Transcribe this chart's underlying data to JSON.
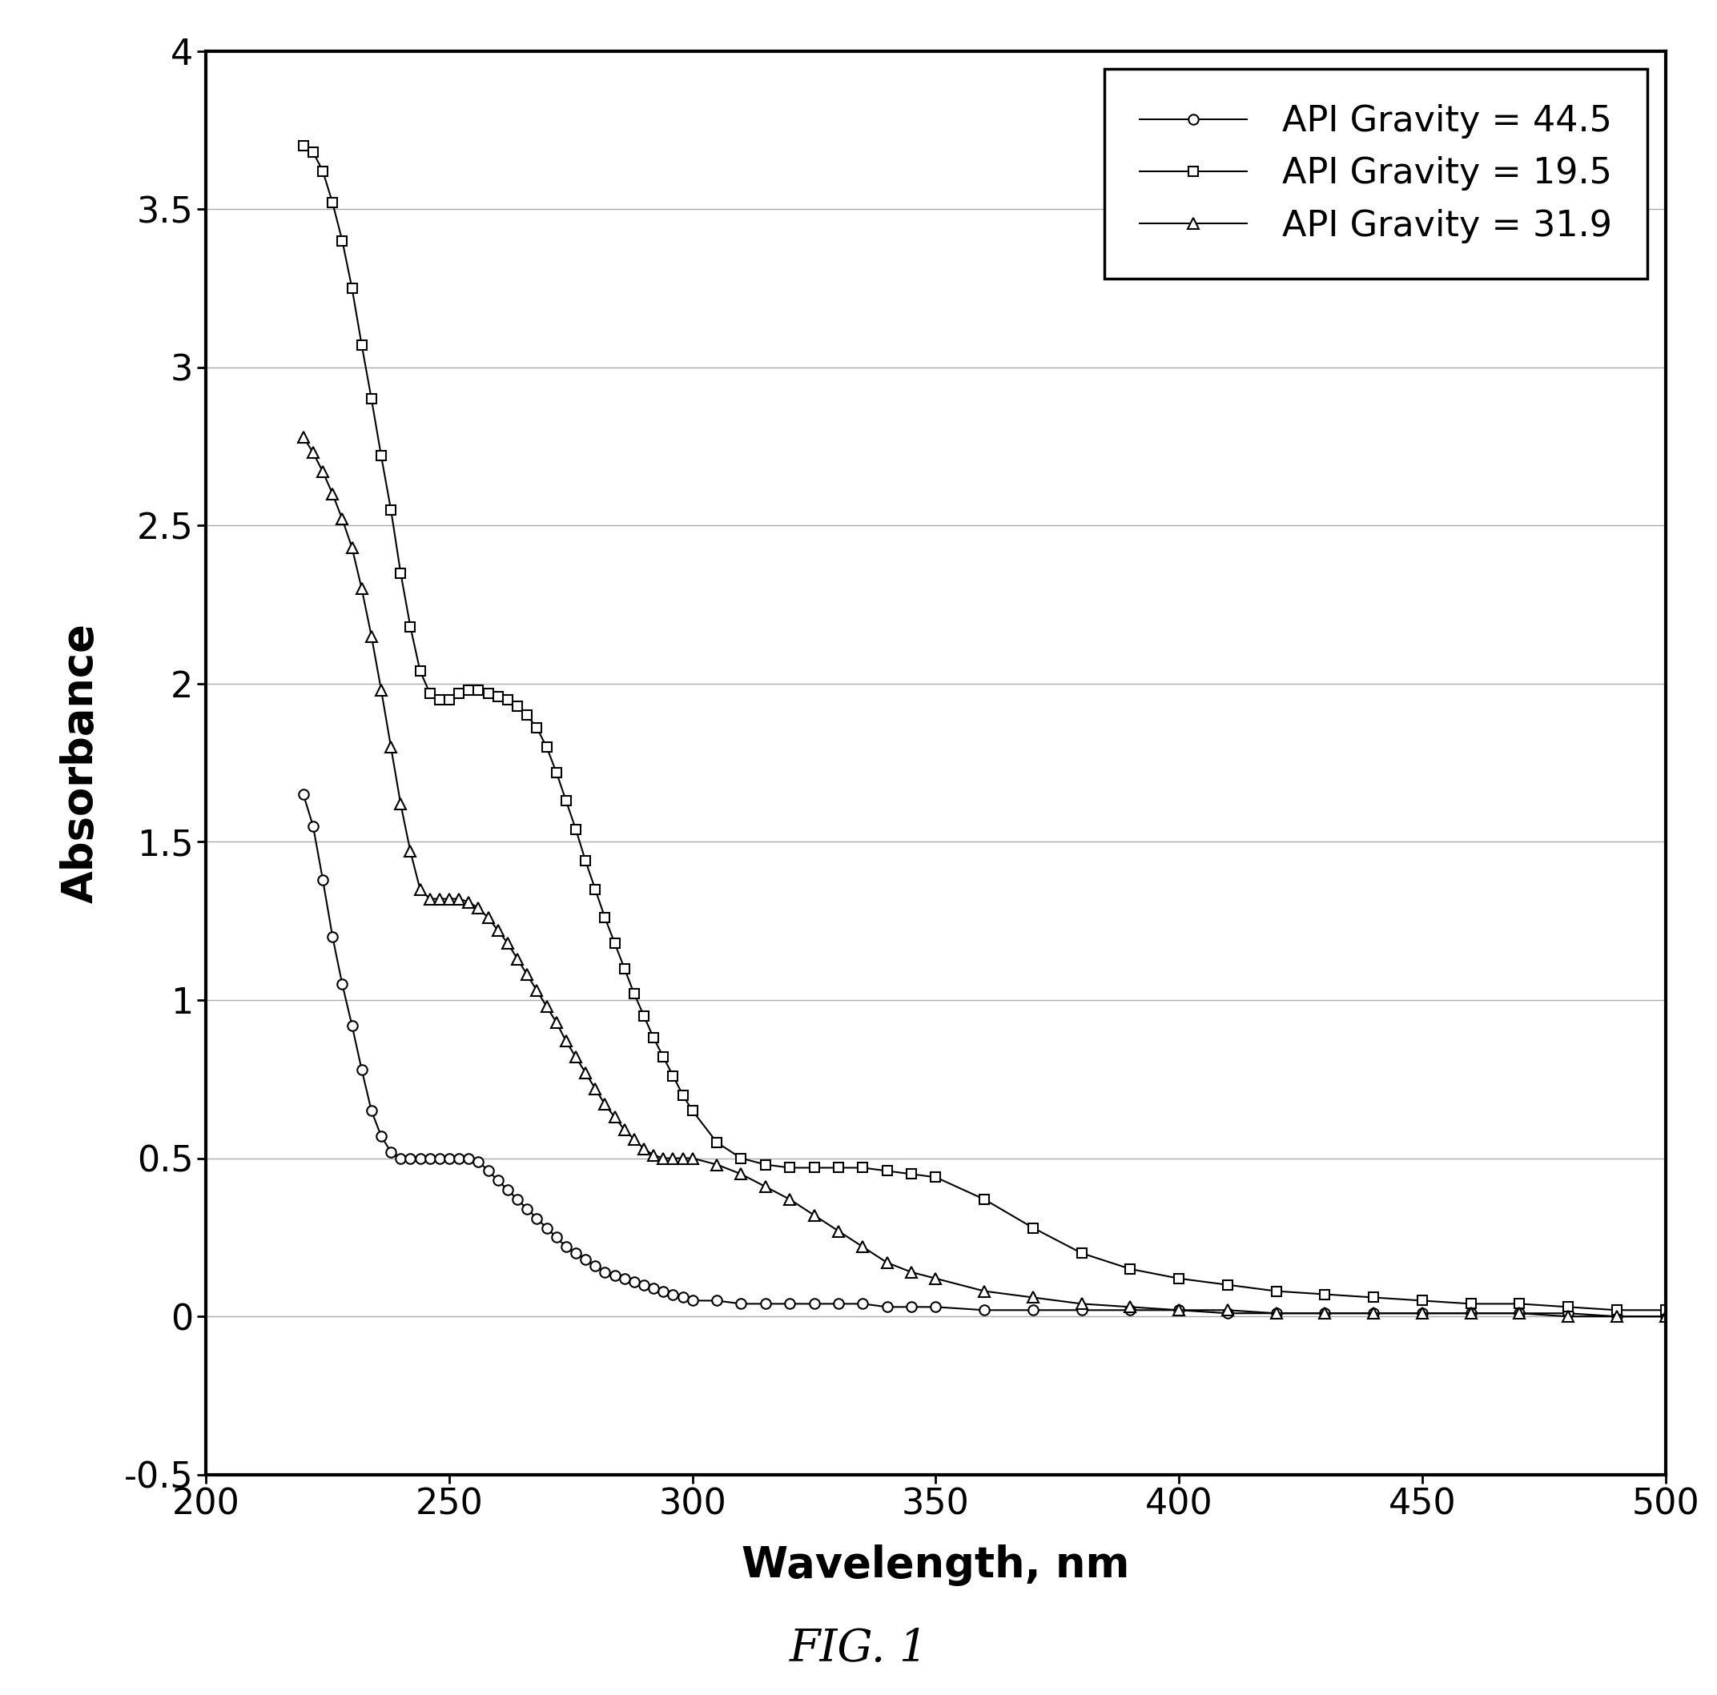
{
  "title": "FIG. 1",
  "xlabel": "Wavelength, nm",
  "ylabel": "Absorbance",
  "xlim": [
    200,
    500
  ],
  "ylim": [
    -0.5,
    4.0
  ],
  "xticks": [
    200,
    250,
    300,
    350,
    400,
    450,
    500
  ],
  "yticks": [
    -0.5,
    0,
    0.5,
    1,
    1.5,
    2,
    2.5,
    3,
    3.5,
    4
  ],
  "background_color": "#ffffff",
  "series": [
    {
      "label": "API Gravity = 44.5",
      "marker": "o",
      "color": "#000000",
      "x": [
        220,
        222,
        224,
        226,
        228,
        230,
        232,
        234,
        236,
        238,
        240,
        242,
        244,
        246,
        248,
        250,
        252,
        254,
        256,
        258,
        260,
        262,
        264,
        266,
        268,
        270,
        272,
        274,
        276,
        278,
        280,
        282,
        284,
        286,
        288,
        290,
        292,
        294,
        296,
        298,
        300,
        305,
        310,
        315,
        320,
        325,
        330,
        335,
        340,
        345,
        350,
        360,
        370,
        380,
        390,
        400,
        410,
        420,
        430,
        440,
        450,
        460,
        470,
        480,
        490,
        500
      ],
      "y": [
        1.65,
        1.55,
        1.38,
        1.2,
        1.05,
        0.92,
        0.78,
        0.65,
        0.57,
        0.52,
        0.5,
        0.5,
        0.5,
        0.5,
        0.5,
        0.5,
        0.5,
        0.5,
        0.49,
        0.46,
        0.43,
        0.4,
        0.37,
        0.34,
        0.31,
        0.28,
        0.25,
        0.22,
        0.2,
        0.18,
        0.16,
        0.14,
        0.13,
        0.12,
        0.11,
        0.1,
        0.09,
        0.08,
        0.07,
        0.06,
        0.05,
        0.05,
        0.04,
        0.04,
        0.04,
        0.04,
        0.04,
        0.04,
        0.03,
        0.03,
        0.03,
        0.02,
        0.02,
        0.02,
        0.02,
        0.02,
        0.01,
        0.01,
        0.01,
        0.01,
        0.01,
        0.01,
        0.01,
        0.01,
        0.0,
        0.0
      ]
    },
    {
      "label": "API Gravity = 19.5",
      "marker": "s",
      "color": "#000000",
      "x": [
        220,
        222,
        224,
        226,
        228,
        230,
        232,
        234,
        236,
        238,
        240,
        242,
        244,
        246,
        248,
        250,
        252,
        254,
        256,
        258,
        260,
        262,
        264,
        266,
        268,
        270,
        272,
        274,
        276,
        278,
        280,
        282,
        284,
        286,
        288,
        290,
        292,
        294,
        296,
        298,
        300,
        305,
        310,
        315,
        320,
        325,
        330,
        335,
        340,
        345,
        350,
        360,
        370,
        380,
        390,
        400,
        410,
        420,
        430,
        440,
        450,
        460,
        470,
        480,
        490,
        500
      ],
      "y": [
        3.7,
        3.68,
        3.62,
        3.52,
        3.4,
        3.25,
        3.07,
        2.9,
        2.72,
        2.55,
        2.35,
        2.18,
        2.04,
        1.97,
        1.95,
        1.95,
        1.97,
        1.98,
        1.98,
        1.97,
        1.96,
        1.95,
        1.93,
        1.9,
        1.86,
        1.8,
        1.72,
        1.63,
        1.54,
        1.44,
        1.35,
        1.26,
        1.18,
        1.1,
        1.02,
        0.95,
        0.88,
        0.82,
        0.76,
        0.7,
        0.65,
        0.55,
        0.5,
        0.48,
        0.47,
        0.47,
        0.47,
        0.47,
        0.46,
        0.45,
        0.44,
        0.37,
        0.28,
        0.2,
        0.15,
        0.12,
        0.1,
        0.08,
        0.07,
        0.06,
        0.05,
        0.04,
        0.04,
        0.03,
        0.02,
        0.02
      ]
    },
    {
      "label": "API Gravity = 31.9",
      "marker": "^",
      "color": "#000000",
      "x": [
        220,
        222,
        224,
        226,
        228,
        230,
        232,
        234,
        236,
        238,
        240,
        242,
        244,
        246,
        248,
        250,
        252,
        254,
        256,
        258,
        260,
        262,
        264,
        266,
        268,
        270,
        272,
        274,
        276,
        278,
        280,
        282,
        284,
        286,
        288,
        290,
        292,
        294,
        296,
        298,
        300,
        305,
        310,
        315,
        320,
        325,
        330,
        335,
        340,
        345,
        350,
        360,
        370,
        380,
        390,
        400,
        410,
        420,
        430,
        440,
        450,
        460,
        470,
        480,
        490,
        500
      ],
      "y": [
        2.78,
        2.73,
        2.67,
        2.6,
        2.52,
        2.43,
        2.3,
        2.15,
        1.98,
        1.8,
        1.62,
        1.47,
        1.35,
        1.32,
        1.32,
        1.32,
        1.32,
        1.31,
        1.29,
        1.26,
        1.22,
        1.18,
        1.13,
        1.08,
        1.03,
        0.98,
        0.93,
        0.87,
        0.82,
        0.77,
        0.72,
        0.67,
        0.63,
        0.59,
        0.56,
        0.53,
        0.51,
        0.5,
        0.5,
        0.5,
        0.5,
        0.48,
        0.45,
        0.41,
        0.37,
        0.32,
        0.27,
        0.22,
        0.17,
        0.14,
        0.12,
        0.08,
        0.06,
        0.04,
        0.03,
        0.02,
        0.02,
        0.01,
        0.01,
        0.01,
        0.01,
        0.01,
        0.01,
        0.0,
        0.0,
        0.0
      ]
    }
  ]
}
